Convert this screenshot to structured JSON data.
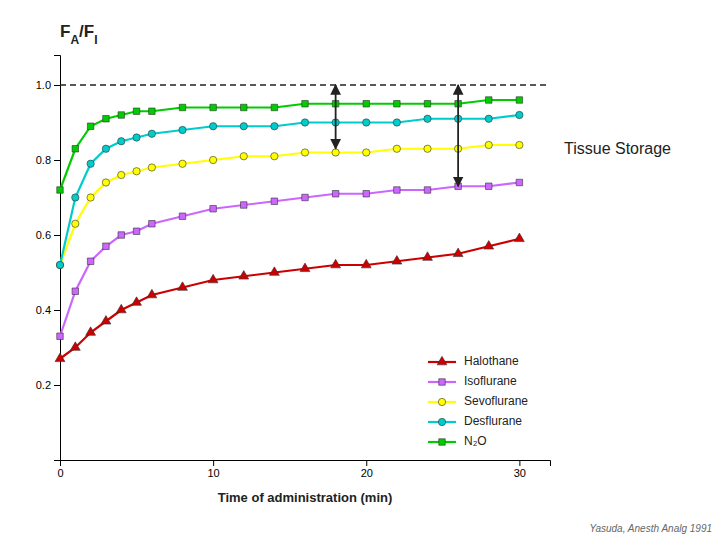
{
  "chart_data": {
    "type": "line",
    "ylabel": "FA/FI",
    "xlabel": "Time of administration (min)",
    "annotation": "Tissue Storage",
    "source": "Yasuda, Anesth Analg 1991",
    "xlim": [
      0,
      32
    ],
    "ylim": [
      0,
      1.08
    ],
    "xticks": [
      0,
      10,
      20,
      30
    ],
    "yticks": [
      0.2,
      0.4,
      0.6,
      0.8,
      {
        "value": 1.0,
        "label": "1.0"
      }
    ],
    "grid": false,
    "legend": "lower right",
    "hline": 1.0,
    "arrows": [
      {
        "x": 18,
        "y_top": 1.0,
        "y_bottom": 0.83
      },
      {
        "x": 26,
        "y_top": 1.0,
        "y_bottom": 0.73
      }
    ],
    "x": [
      0,
      1,
      2,
      3,
      4,
      5,
      6,
      8,
      10,
      12,
      14,
      16,
      18,
      20,
      22,
      24,
      26,
      28,
      30
    ],
    "series": [
      {
        "name": "Halothane",
        "color": "#cc0000",
        "marker": "triangle",
        "values": [
          0.27,
          0.3,
          0.34,
          0.37,
          0.4,
          0.42,
          0.44,
          0.46,
          0.48,
          0.49,
          0.5,
          0.51,
          0.52,
          0.52,
          0.53,
          0.54,
          0.55,
          0.57,
          0.59
        ]
      },
      {
        "name": "Isoflurane",
        "color": "#cc66ff",
        "marker": "square",
        "values": [
          0.33,
          0.45,
          0.53,
          0.57,
          0.6,
          0.61,
          0.63,
          0.65,
          0.67,
          0.68,
          0.69,
          0.7,
          0.71,
          0.71,
          0.72,
          0.72,
          0.73,
          0.73,
          0.74
        ]
      },
      {
        "name": "Sevoflurane",
        "color": "#ffff00",
        "marker": "circle",
        "values": [
          0.52,
          0.63,
          0.7,
          0.74,
          0.76,
          0.77,
          0.78,
          0.79,
          0.8,
          0.81,
          0.81,
          0.82,
          0.82,
          0.82,
          0.83,
          0.83,
          0.83,
          0.84,
          0.84
        ]
      },
      {
        "name": "Desflurane",
        "color": "#00cccc",
        "marker": "circle",
        "values": [
          0.52,
          0.7,
          0.79,
          0.83,
          0.85,
          0.86,
          0.87,
          0.88,
          0.89,
          0.89,
          0.89,
          0.9,
          0.9,
          0.9,
          0.9,
          0.91,
          0.91,
          0.91,
          0.92
        ]
      },
      {
        "name": "N₂O",
        "color": "#00cc00",
        "marker": "square",
        "values": [
          0.72,
          0.83,
          0.89,
          0.91,
          0.92,
          0.93,
          0.93,
          0.94,
          0.94,
          0.94,
          0.94,
          0.95,
          0.95,
          0.95,
          0.95,
          0.95,
          0.95,
          0.96,
          0.96
        ]
      }
    ]
  }
}
